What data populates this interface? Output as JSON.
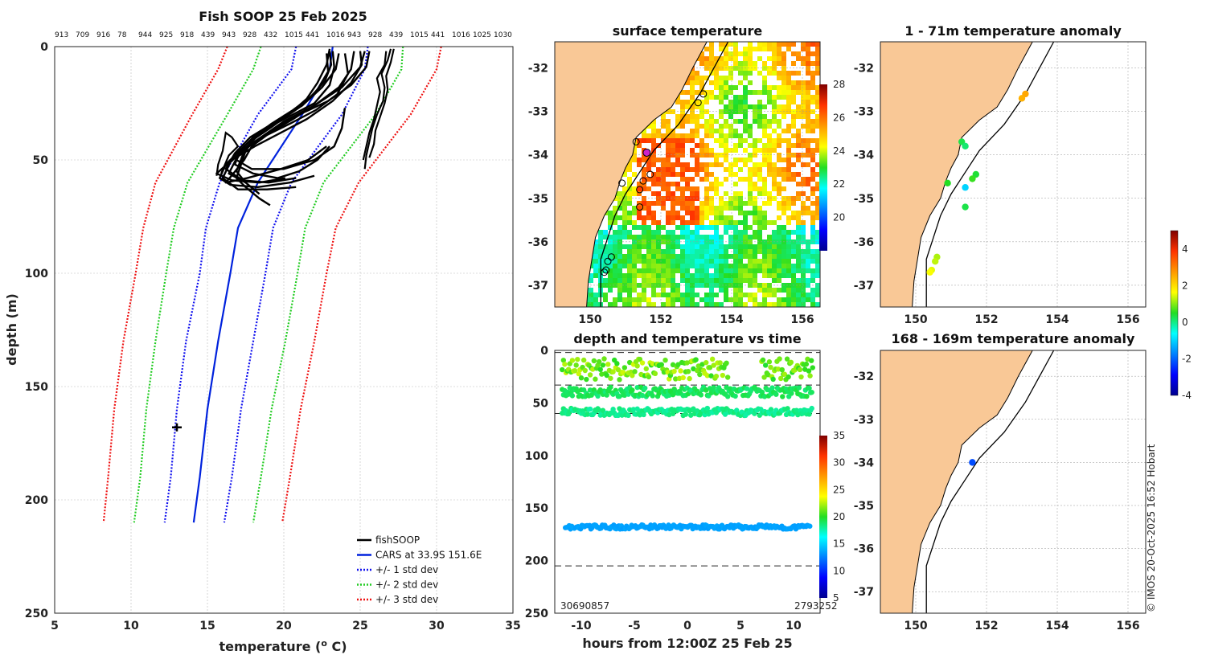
{
  "chart_data": [
    {
      "id": "profile",
      "type": "line",
      "title": "Fish SOOP 25 Feb 2025",
      "top_labels": [
        "913",
        "709",
        "916",
        "78",
        "944",
        "925",
        "918",
        "439",
        "943",
        "928",
        "432",
        "1015",
        "441",
        "1016",
        "943",
        "928",
        "439",
        "1015",
        "441",
        "1016",
        "1025",
        "1030"
      ],
      "xlabel": "temperature (",
      "xlabel_sup": "o",
      "xlabel_end": " C)",
      "ylabel": "depth (m)",
      "xlim": [
        5,
        35
      ],
      "ylim": [
        0,
        250
      ],
      "xticks": [
        "5",
        "10",
        "15",
        "20",
        "25",
        "30",
        "35"
      ],
      "yticks": [
        "0",
        "50",
        "100",
        "150",
        "200",
        "250"
      ],
      "legend": [
        "fishSOOP",
        "CARS at 33.9S 151.6E",
        "+/- 1 std dev",
        "+/- 2 std dev",
        "+/- 3 std dev"
      ],
      "depth": [
        0,
        10,
        30,
        60,
        80,
        100,
        130,
        160,
        190,
        210
      ],
      "cars": [
        23.2,
        23.0,
        21.2,
        18.3,
        17.0,
        16.5,
        15.7,
        15.0,
        14.5,
        14.1
      ],
      "std1_lo": [
        20.8,
        20.5,
        18.3,
        15.8,
        14.9,
        14.5,
        13.6,
        13.0,
        12.6,
        12.2
      ],
      "std1_hi": [
        25.5,
        25.3,
        23.8,
        20.5,
        19.3,
        18.8,
        18.0,
        17.2,
        16.6,
        16.1
      ],
      "std2_lo": [
        18.5,
        18.0,
        16.3,
        13.7,
        12.8,
        12.3,
        11.6,
        11.0,
        10.6,
        10.2
      ],
      "std2_hi": [
        27.8,
        27.7,
        26.0,
        22.6,
        21.4,
        20.9,
        20.1,
        19.2,
        18.5,
        18.0
      ],
      "std3_lo": [
        16.3,
        15.7,
        14.0,
        11.6,
        10.8,
        10.3,
        9.5,
        8.9,
        8.5,
        8.2
      ],
      "std3_hi": [
        30.3,
        30.0,
        28.3,
        24.9,
        23.4,
        22.8,
        22.0,
        21.1,
        20.4,
        19.9
      ],
      "fish_marker": {
        "temperature": 13.0,
        "depth": 168
      }
    },
    {
      "id": "sst_map",
      "type": "heatmap",
      "title": "surface temperature",
      "xticks": [
        "150",
        "152",
        "154",
        "156"
      ],
      "yticks": [
        "-32",
        "-33",
        "-34",
        "-35",
        "-36",
        "-37"
      ],
      "xlim": [
        149,
        156.5
      ],
      "ylim": [
        -37.5,
        -31.4
      ],
      "colorbar_ticks": [
        "20",
        "22",
        "24",
        "26",
        "28"
      ],
      "colorbar_range": [
        18,
        28
      ]
    },
    {
      "id": "time_series",
      "type": "scatter",
      "title": "depth and temperature vs time",
      "xlabel": "hours from 12:00Z 25 Feb 25",
      "xticks": [
        "-10",
        "-5",
        "0",
        "5",
        "10"
      ],
      "yticks": [
        "0",
        "50",
        "100",
        "150",
        "200",
        "250"
      ],
      "xlim": [
        -12.5,
        12.5
      ],
      "ylim": [
        0,
        250
      ],
      "colorbar_ticks": [
        "5",
        "10",
        "15",
        "20",
        "25",
        "30",
        "35"
      ],
      "colorbar_range": [
        5,
        35
      ],
      "dashed_depths": [
        2,
        33,
        60,
        205
      ],
      "bottom_left_label": "30690857",
      "bottom_right_label": "27932",
      "bottom_right_label_b": "52"
    },
    {
      "id": "anom_shallow",
      "type": "scatter",
      "title": "1 - 71m temperature anomaly",
      "xticks": [
        "150",
        "152",
        "154",
        "156"
      ],
      "yticks": [
        "-32",
        "-33",
        "-34",
        "-35",
        "-36",
        "-37"
      ],
      "xlim": [
        149,
        156.5
      ],
      "ylim": [
        -37.5,
        -31.4
      ],
      "points": [
        {
          "lon": 153.1,
          "lat": -32.6,
          "anom": 2.6
        },
        {
          "lon": 153.0,
          "lat": -32.7,
          "anom": 2.5
        },
        {
          "lon": 151.3,
          "lat": -33.7,
          "anom": 0.3
        },
        {
          "lon": 151.4,
          "lat": -33.8,
          "anom": 0.1
        },
        {
          "lon": 151.7,
          "lat": -34.45,
          "anom": 0.4
        },
        {
          "lon": 151.6,
          "lat": -34.55,
          "anom": 0.6
        },
        {
          "lon": 150.9,
          "lat": -34.65,
          "anom": 0.5
        },
        {
          "lon": 151.4,
          "lat": -34.75,
          "anom": -1.0
        },
        {
          "lon": 151.4,
          "lat": -35.2,
          "anom": 0.3
        },
        {
          "lon": 150.6,
          "lat": -36.35,
          "anom": 1.2
        },
        {
          "lon": 150.55,
          "lat": -36.45,
          "anom": 1.3
        },
        {
          "lon": 150.45,
          "lat": -36.65,
          "anom": 1.5
        },
        {
          "lon": 150.4,
          "lat": -36.7,
          "anom": 1.6
        }
      ]
    },
    {
      "id": "anom_deep",
      "type": "scatter",
      "title": "168 - 169m temperature anomaly",
      "xticks": [
        "150",
        "152",
        "154",
        "156"
      ],
      "yticks": [
        "-32",
        "-33",
        "-34",
        "-35",
        "-36",
        "-37"
      ],
      "xlim": [
        149,
        156.5
      ],
      "ylim": [
        -37.5,
        -31.4
      ],
      "points": [
        {
          "lon": 151.6,
          "lat": -34.0,
          "anom": -2.2
        }
      ]
    },
    {
      "id": "anom_colorbar",
      "type": "heatmap",
      "colorbar_ticks": [
        "4",
        "2",
        "0",
        "-2",
        "-4"
      ],
      "colorbar_range": [
        -4,
        5
      ]
    }
  ],
  "colors": {
    "fish": "#000000",
    "cars": "#0022dd",
    "std1": "#1111ee",
    "std2": "#22cc22",
    "std3": "#ee1111",
    "land": "#f9c896",
    "grid": "#bbbbbb"
  },
  "footer": "© IMOS 20-Oct-2025 16:52 Hobart"
}
